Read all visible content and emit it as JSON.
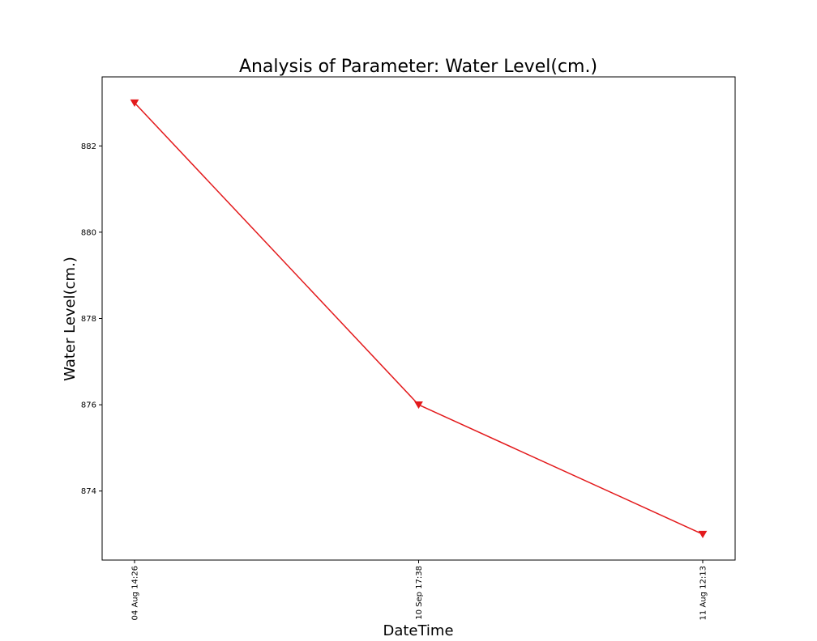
{
  "chart_data": {
    "type": "line",
    "title": "Analysis of Parameter: Water Level(cm.)",
    "xlabel": "DateTime",
    "ylabel": "Water Level(cm.)",
    "categories": [
      "04 Aug 14:26",
      "10 Sep 17:38",
      "11 Aug 12:13"
    ],
    "series": [
      {
        "values": [
          883,
          876,
          873
        ],
        "color": "#e31a1c",
        "marker": "triangle-down"
      }
    ],
    "ylim": [
      872.4,
      883.6
    ],
    "yticks": [
      874,
      876,
      878,
      880,
      882
    ],
    "grid": false
  }
}
